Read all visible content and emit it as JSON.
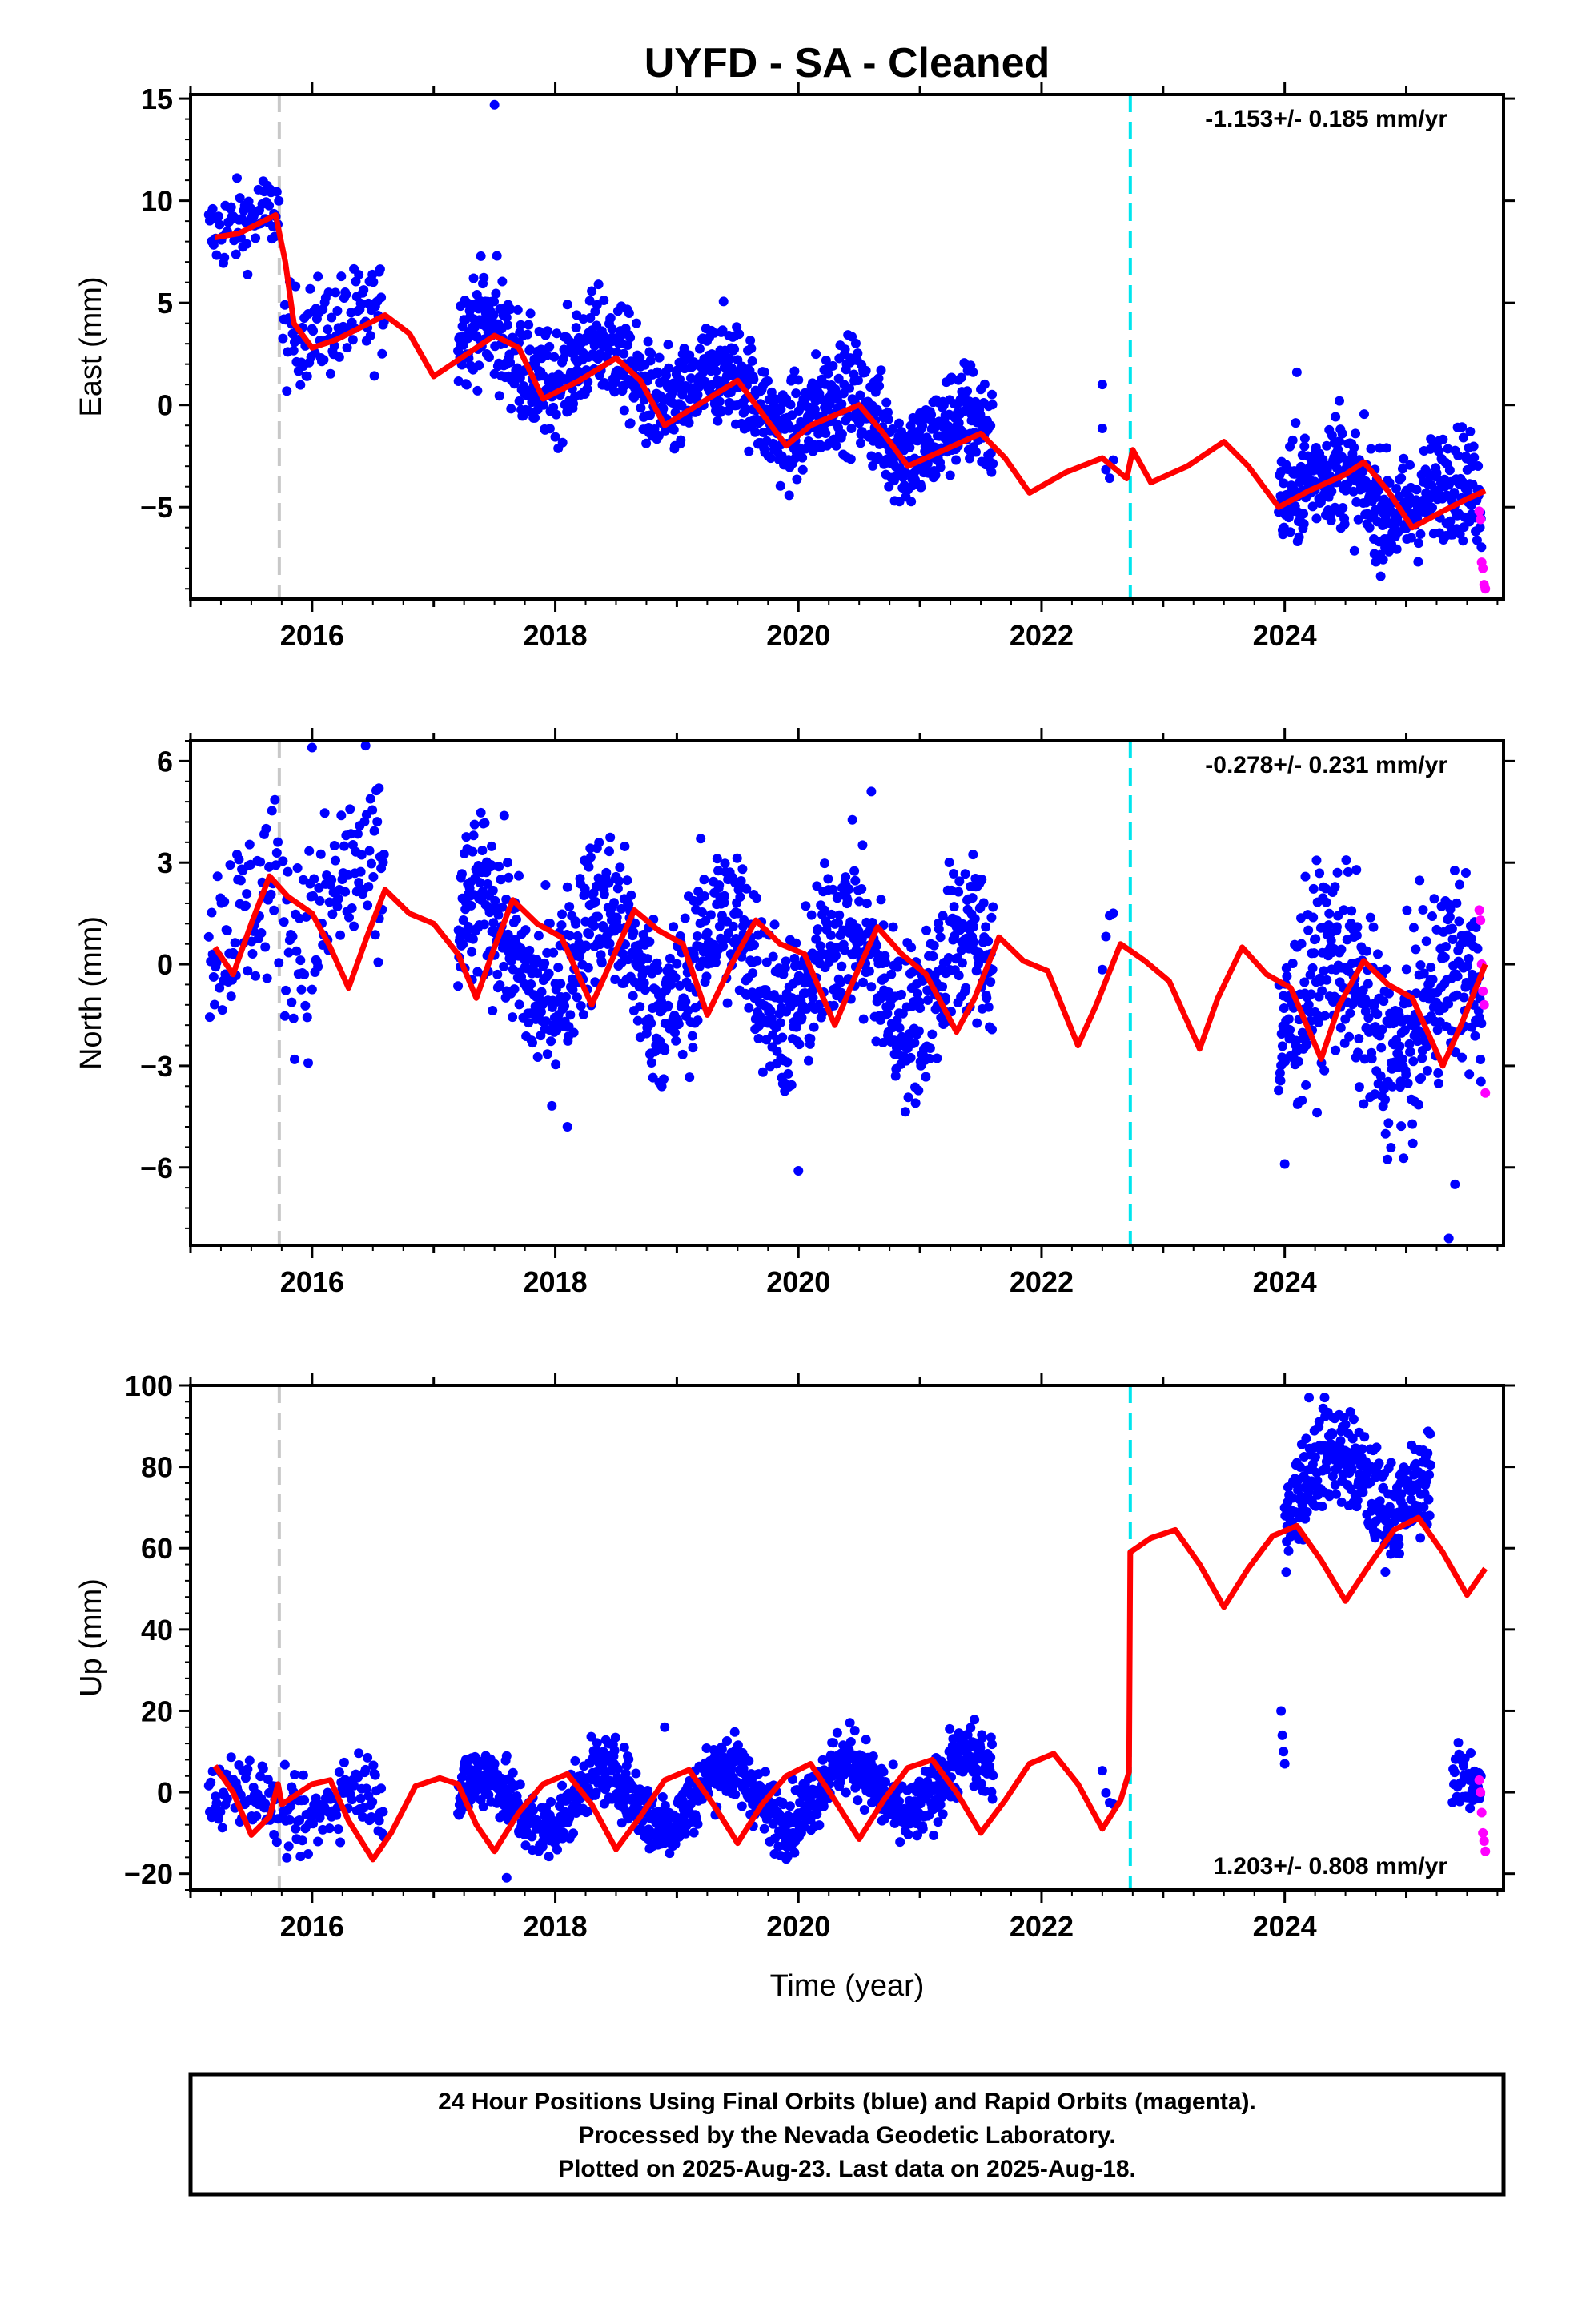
{
  "title": "UYFD  - SA - Cleaned",
  "footer": {
    "lines": [
      "24 Hour Positions Using Final Orbits (blue) and Rapid Orbits (magenta).",
      "Processed by the Nevada Geodetic Laboratory.",
      "Plotted on 2025-Aug-23. Last data on 2025-Aug-18."
    ]
  },
  "colors": {
    "final_orbits": "#0000ff",
    "rapid_orbits": "#ff00ff",
    "model": "#ff0000",
    "equipment_change": "#c8c8c8",
    "earthquake": "#00e5ee"
  },
  "chart_data": [
    {
      "type": "scatter",
      "component": "east",
      "ylabel": "East (mm)",
      "xlabel": "",
      "xlim": [
        2015.0,
        2025.8
      ],
      "ylim": [
        -9.5,
        15.2
      ],
      "yticks": [
        -5,
        0,
        5,
        10,
        15
      ],
      "xticks": [
        2016,
        2018,
        2020,
        2022,
        2024
      ],
      "rate_label": "-1.153+/- 0.185 mm/yr",
      "rate_position": "top-right",
      "vlines": [
        {
          "x": 2015.73,
          "kind": "equipment_change",
          "color": "#c8c8c8"
        },
        {
          "x": 2022.73,
          "kind": "earthquake",
          "color": "#00e5ee"
        }
      ],
      "model": [
        [
          2015.2,
          8.2
        ],
        [
          2015.4,
          8.4
        ],
        [
          2015.6,
          9.0
        ],
        [
          2015.7,
          9.3
        ],
        [
          2015.78,
          7.0
        ],
        [
          2015.85,
          4.0
        ],
        [
          2016.0,
          2.8
        ],
        [
          2016.2,
          3.2
        ],
        [
          2016.4,
          3.8
        ],
        [
          2016.6,
          4.4
        ],
        [
          2016.8,
          3.5
        ],
        [
          2017.0,
          1.4
        ],
        [
          2017.2,
          2.2
        ],
        [
          2017.5,
          3.4
        ],
        [
          2017.7,
          2.8
        ],
        [
          2017.9,
          0.3
        ],
        [
          2018.2,
          1.2
        ],
        [
          2018.5,
          2.3
        ],
        [
          2018.7,
          1.2
        ],
        [
          2018.9,
          -1.0
        ],
        [
          2019.2,
          0.1
        ],
        [
          2019.5,
          1.2
        ],
        [
          2019.7,
          -0.4
        ],
        [
          2019.9,
          -2.0
        ],
        [
          2020.1,
          -1.0
        ],
        [
          2020.5,
          0.0
        ],
        [
          2020.7,
          -1.4
        ],
        [
          2020.9,
          -3.0
        ],
        [
          2021.2,
          -2.2
        ],
        [
          2021.5,
          -1.4
        ],
        [
          2021.7,
          -2.6
        ],
        [
          2021.9,
          -4.3
        ],
        [
          2022.2,
          -3.3
        ],
        [
          2022.5,
          -2.6
        ],
        [
          2022.7,
          -3.6
        ],
        [
          2022.75,
          -2.2
        ],
        [
          2022.9,
          -3.8
        ],
        [
          2023.2,
          -3.0
        ],
        [
          2023.5,
          -1.8
        ],
        [
          2023.7,
          -3.0
        ],
        [
          2023.95,
          -5.0
        ],
        [
          2024.2,
          -4.2
        ],
        [
          2024.5,
          -3.4
        ],
        [
          2024.65,
          -2.8
        ],
        [
          2024.85,
          -4.2
        ],
        [
          2025.05,
          -6.0
        ],
        [
          2025.3,
          -5.2
        ],
        [
          2025.5,
          -4.6
        ],
        [
          2025.65,
          -4.2
        ]
      ],
      "observations": [
        {
          "start": 2015.15,
          "end": 2015.73,
          "trend_start": 8.3,
          "trend_end": 9.6,
          "noise": 1.0,
          "step": 0.008
        },
        {
          "start": 2015.76,
          "end": 2016.6,
          "trend_start": 3.2,
          "trend_end": 4.6,
          "noise": 1.2,
          "step": 0.008
        },
        {
          "start": 2017.2,
          "end": 2021.6,
          "trend_start": 3.0,
          "trend_end": -2.0,
          "noise": 1.3,
          "step": 0.004,
          "seasonal": 1.3
        },
        {
          "start": 2022.5,
          "end": 2022.6,
          "trend_start": -2.5,
          "trend_end": -2.5,
          "noise": 0.8,
          "step": 0.03
        },
        {
          "start": 2023.95,
          "end": 2025.62,
          "trend_start": -3.8,
          "trend_end": -4.8,
          "noise": 1.3,
          "step": 0.004,
          "seasonal": 1.0
        }
      ],
      "outliers": [
        [
          2017.5,
          14.7
        ],
        [
          2017.52,
          7.3
        ],
        [
          2022.5,
          1.0
        ],
        [
          2024.1,
          1.6
        ],
        [
          2024.45,
          0.2
        ]
      ],
      "rapid": [
        [
          2025.6,
          -5.2
        ],
        [
          2025.61,
          -5.6
        ],
        [
          2025.62,
          -7.7
        ],
        [
          2025.63,
          -8.0
        ],
        [
          2025.64,
          -8.8
        ],
        [
          2025.65,
          -9.0
        ]
      ]
    },
    {
      "type": "scatter",
      "component": "north",
      "ylabel": "North (mm)",
      "xlabel": "",
      "xlim": [
        2015.0,
        2025.8
      ],
      "ylim": [
        -8.3,
        6.6
      ],
      "yticks": [
        -6,
        -3,
        0,
        3,
        6
      ],
      "xticks": [
        2016,
        2018,
        2020,
        2022,
        2024
      ],
      "rate_label": "-0.278+/- 0.231 mm/yr",
      "rate_position": "top-right",
      "vlines": [
        {
          "x": 2015.73,
          "kind": "equipment_change",
          "color": "#c8c8c8"
        },
        {
          "x": 2022.73,
          "kind": "earthquake",
          "color": "#00e5ee"
        }
      ],
      "model": [
        [
          2015.2,
          0.5
        ],
        [
          2015.35,
          -0.3
        ],
        [
          2015.5,
          1.2
        ],
        [
          2015.65,
          2.6
        ],
        [
          2015.8,
          2.0
        ],
        [
          2016.0,
          1.5
        ],
        [
          2016.15,
          0.5
        ],
        [
          2016.3,
          -0.7
        ],
        [
          2016.45,
          0.8
        ],
        [
          2016.6,
          2.2
        ],
        [
          2016.8,
          1.5
        ],
        [
          2017.0,
          1.2
        ],
        [
          2017.2,
          0.3
        ],
        [
          2017.35,
          -1.0
        ],
        [
          2017.5,
          0.5
        ],
        [
          2017.65,
          1.9
        ],
        [
          2017.85,
          1.2
        ],
        [
          2018.05,
          0.8
        ],
        [
          2018.3,
          -1.2
        ],
        [
          2018.45,
          0.0
        ],
        [
          2018.65,
          1.6
        ],
        [
          2018.85,
          1.0
        ],
        [
          2019.05,
          0.6
        ],
        [
          2019.25,
          -1.5
        ],
        [
          2019.45,
          0.0
        ],
        [
          2019.65,
          1.3
        ],
        [
          2019.85,
          0.6
        ],
        [
          2020.05,
          0.3
        ],
        [
          2020.3,
          -1.8
        ],
        [
          2020.45,
          -0.5
        ],
        [
          2020.65,
          1.1
        ],
        [
          2020.85,
          0.3
        ],
        [
          2021.05,
          -0.3
        ],
        [
          2021.3,
          -2.0
        ],
        [
          2021.45,
          -1.0
        ],
        [
          2021.65,
          0.8
        ],
        [
          2021.85,
          0.1
        ],
        [
          2022.05,
          -0.2
        ],
        [
          2022.3,
          -2.4
        ],
        [
          2022.45,
          -1.2
        ],
        [
          2022.65,
          0.6
        ],
        [
          2022.85,
          0.1
        ],
        [
          2023.05,
          -0.5
        ],
        [
          2023.3,
          -2.5
        ],
        [
          2023.45,
          -1.0
        ],
        [
          2023.65,
          0.5
        ],
        [
          2023.85,
          -0.3
        ],
        [
          2024.05,
          -0.7
        ],
        [
          2024.3,
          -2.8
        ],
        [
          2024.45,
          -1.2
        ],
        [
          2024.65,
          0.1
        ],
        [
          2024.85,
          -0.6
        ],
        [
          2025.05,
          -1.0
        ],
        [
          2025.3,
          -3.0
        ],
        [
          2025.45,
          -1.8
        ],
        [
          2025.65,
          0.0
        ]
      ],
      "observations": [
        {
          "start": 2015.15,
          "end": 2015.73,
          "trend_start": 0.5,
          "trend_end": 2.5,
          "noise": 1.3,
          "step": 0.008
        },
        {
          "start": 2015.76,
          "end": 2016.6,
          "trend_start": 2.0,
          "trend_end": 1.5,
          "noise": 1.5,
          "step": 0.008,
          "seasonal": 1.2
        },
        {
          "start": 2017.2,
          "end": 2021.6,
          "trend_start": 0.5,
          "trend_end": -0.5,
          "noise": 1.2,
          "step": 0.004,
          "seasonal": 1.4
        },
        {
          "start": 2022.5,
          "end": 2022.6,
          "trend_start": 0.5,
          "trend_end": 1.5,
          "noise": 0.8,
          "step": 0.03
        },
        {
          "start": 2023.95,
          "end": 2025.62,
          "trend_start": -1.0,
          "trend_end": -1.5,
          "noise": 1.4,
          "step": 0.004,
          "seasonal": 1.4
        }
      ],
      "outliers": [
        [
          2016.0,
          6.4
        ],
        [
          2018.1,
          -4.8
        ],
        [
          2020.0,
          -6.1
        ],
        [
          2024.0,
          -5.9
        ],
        [
          2025.4,
          -6.5
        ],
        [
          2025.35,
          -8.1
        ],
        [
          2020.6,
          5.1
        ],
        [
          2016.55,
          5.2
        ]
      ],
      "rapid": [
        [
          2025.6,
          1.6
        ],
        [
          2025.61,
          1.3
        ],
        [
          2025.62,
          0.0
        ],
        [
          2025.63,
          -0.8
        ],
        [
          2025.64,
          -1.2
        ],
        [
          2025.65,
          -3.8
        ]
      ]
    },
    {
      "type": "scatter",
      "component": "up",
      "ylabel": "Up (mm)",
      "xlabel": "Time (year)",
      "xlim": [
        2015.0,
        2025.8
      ],
      "ylim": [
        -24,
        100
      ],
      "yticks": [
        -20,
        0,
        20,
        40,
        60,
        80,
        100
      ],
      "xticks": [
        2016,
        2018,
        2020,
        2022,
        2024
      ],
      "rate_label": "1.203+/- 0.808 mm/yr",
      "rate_position": "bottom-right",
      "vlines": [
        {
          "x": 2015.73,
          "kind": "equipment_change",
          "color": "#c8c8c8"
        },
        {
          "x": 2022.73,
          "kind": "earthquake",
          "color": "#00e5ee"
        }
      ],
      "model": [
        [
          2015.2,
          6.5
        ],
        [
          2015.35,
          0.0
        ],
        [
          2015.5,
          -10.5
        ],
        [
          2015.65,
          -6.0
        ],
        [
          2015.72,
          2.0
        ],
        [
          2015.75,
          -3.0
        ],
        [
          2015.85,
          -1.0
        ],
        [
          2016.0,
          2.0
        ],
        [
          2016.15,
          3.0
        ],
        [
          2016.3,
          -7.0
        ],
        [
          2016.5,
          -16.5
        ],
        [
          2016.65,
          -10.0
        ],
        [
          2016.85,
          1.5
        ],
        [
          2017.05,
          3.5
        ],
        [
          2017.2,
          2.0
        ],
        [
          2017.35,
          -8.0
        ],
        [
          2017.5,
          -14.5
        ],
        [
          2017.7,
          -5.0
        ],
        [
          2017.9,
          2.0
        ],
        [
          2018.1,
          4.5
        ],
        [
          2018.3,
          -3.0
        ],
        [
          2018.5,
          -14.0
        ],
        [
          2018.7,
          -6.0
        ],
        [
          2018.9,
          3.0
        ],
        [
          2019.1,
          5.5
        ],
        [
          2019.3,
          -3.0
        ],
        [
          2019.5,
          -12.5
        ],
        [
          2019.7,
          -3.0
        ],
        [
          2019.9,
          4.0
        ],
        [
          2020.1,
          7.0
        ],
        [
          2020.3,
          -2.0
        ],
        [
          2020.5,
          -11.5
        ],
        [
          2020.7,
          -2.0
        ],
        [
          2020.9,
          6.0
        ],
        [
          2021.1,
          8.0
        ],
        [
          2021.3,
          0.0
        ],
        [
          2021.5,
          -10.0
        ],
        [
          2021.7,
          -2.0
        ],
        [
          2021.9,
          7.0
        ],
        [
          2022.1,
          9.5
        ],
        [
          2022.3,
          2.0
        ],
        [
          2022.5,
          -9.0
        ],
        [
          2022.65,
          -2.0
        ],
        [
          2022.72,
          5.0
        ],
        [
          2022.73,
          59.0
        ],
        [
          2022.9,
          62.5
        ],
        [
          2023.1,
          64.5
        ],
        [
          2023.3,
          56.0
        ],
        [
          2023.5,
          45.5
        ],
        [
          2023.7,
          55.0
        ],
        [
          2023.9,
          63.0
        ],
        [
          2024.1,
          65.5
        ],
        [
          2024.3,
          57.0
        ],
        [
          2024.5,
          47.0
        ],
        [
          2024.7,
          56.0
        ],
        [
          2024.9,
          64.5
        ],
        [
          2025.1,
          67.5
        ],
        [
          2025.3,
          59.0
        ],
        [
          2025.5,
          48.5
        ],
        [
          2025.65,
          55.0
        ]
      ],
      "observations": [
        {
          "start": 2015.15,
          "end": 2015.73,
          "trend_start": -3.0,
          "trend_end": -3.0,
          "noise": 4.0,
          "step": 0.008,
          "seasonal": 5.0
        },
        {
          "start": 2015.76,
          "end": 2016.6,
          "trend_start": -1.0,
          "trend_end": -5.0,
          "noise": 4.5,
          "step": 0.008,
          "seasonal": 6.0
        },
        {
          "start": 2017.2,
          "end": 2021.6,
          "trend_start": -3.0,
          "trend_end": 2.0,
          "noise": 4.0,
          "step": 0.004,
          "seasonal": 7.0
        },
        {
          "start": 2022.5,
          "end": 2022.6,
          "trend_start": 0.0,
          "trend_end": -5.0,
          "noise": 3.0,
          "step": 0.03
        },
        {
          "start": 2024.0,
          "end": 2025.2,
          "trend_start": 75.0,
          "trend_end": 78.0,
          "noise": 6.0,
          "step": 0.004,
          "seasonal": 8.0
        },
        {
          "start": 2025.38,
          "end": 2025.62,
          "trend_start": 3.0,
          "trend_end": 3.0,
          "noise": 4.0,
          "step": 0.006
        }
      ],
      "outliers": [
        [
          2023.97,
          20.0
        ],
        [
          2023.98,
          14.0
        ],
        [
          2023.99,
          10.0
        ],
        [
          2024.0,
          7.0
        ],
        [
          2024.2,
          97.0
        ],
        [
          2017.6,
          -21.0
        ],
        [
          2018.9,
          16.0
        ]
      ],
      "rapid": [
        [
          2025.6,
          3.0
        ],
        [
          2025.61,
          0.0
        ],
        [
          2025.62,
          -5.0
        ],
        [
          2025.63,
          -10.0
        ],
        [
          2025.64,
          -12.0
        ],
        [
          2025.65,
          -14.5
        ]
      ]
    }
  ]
}
